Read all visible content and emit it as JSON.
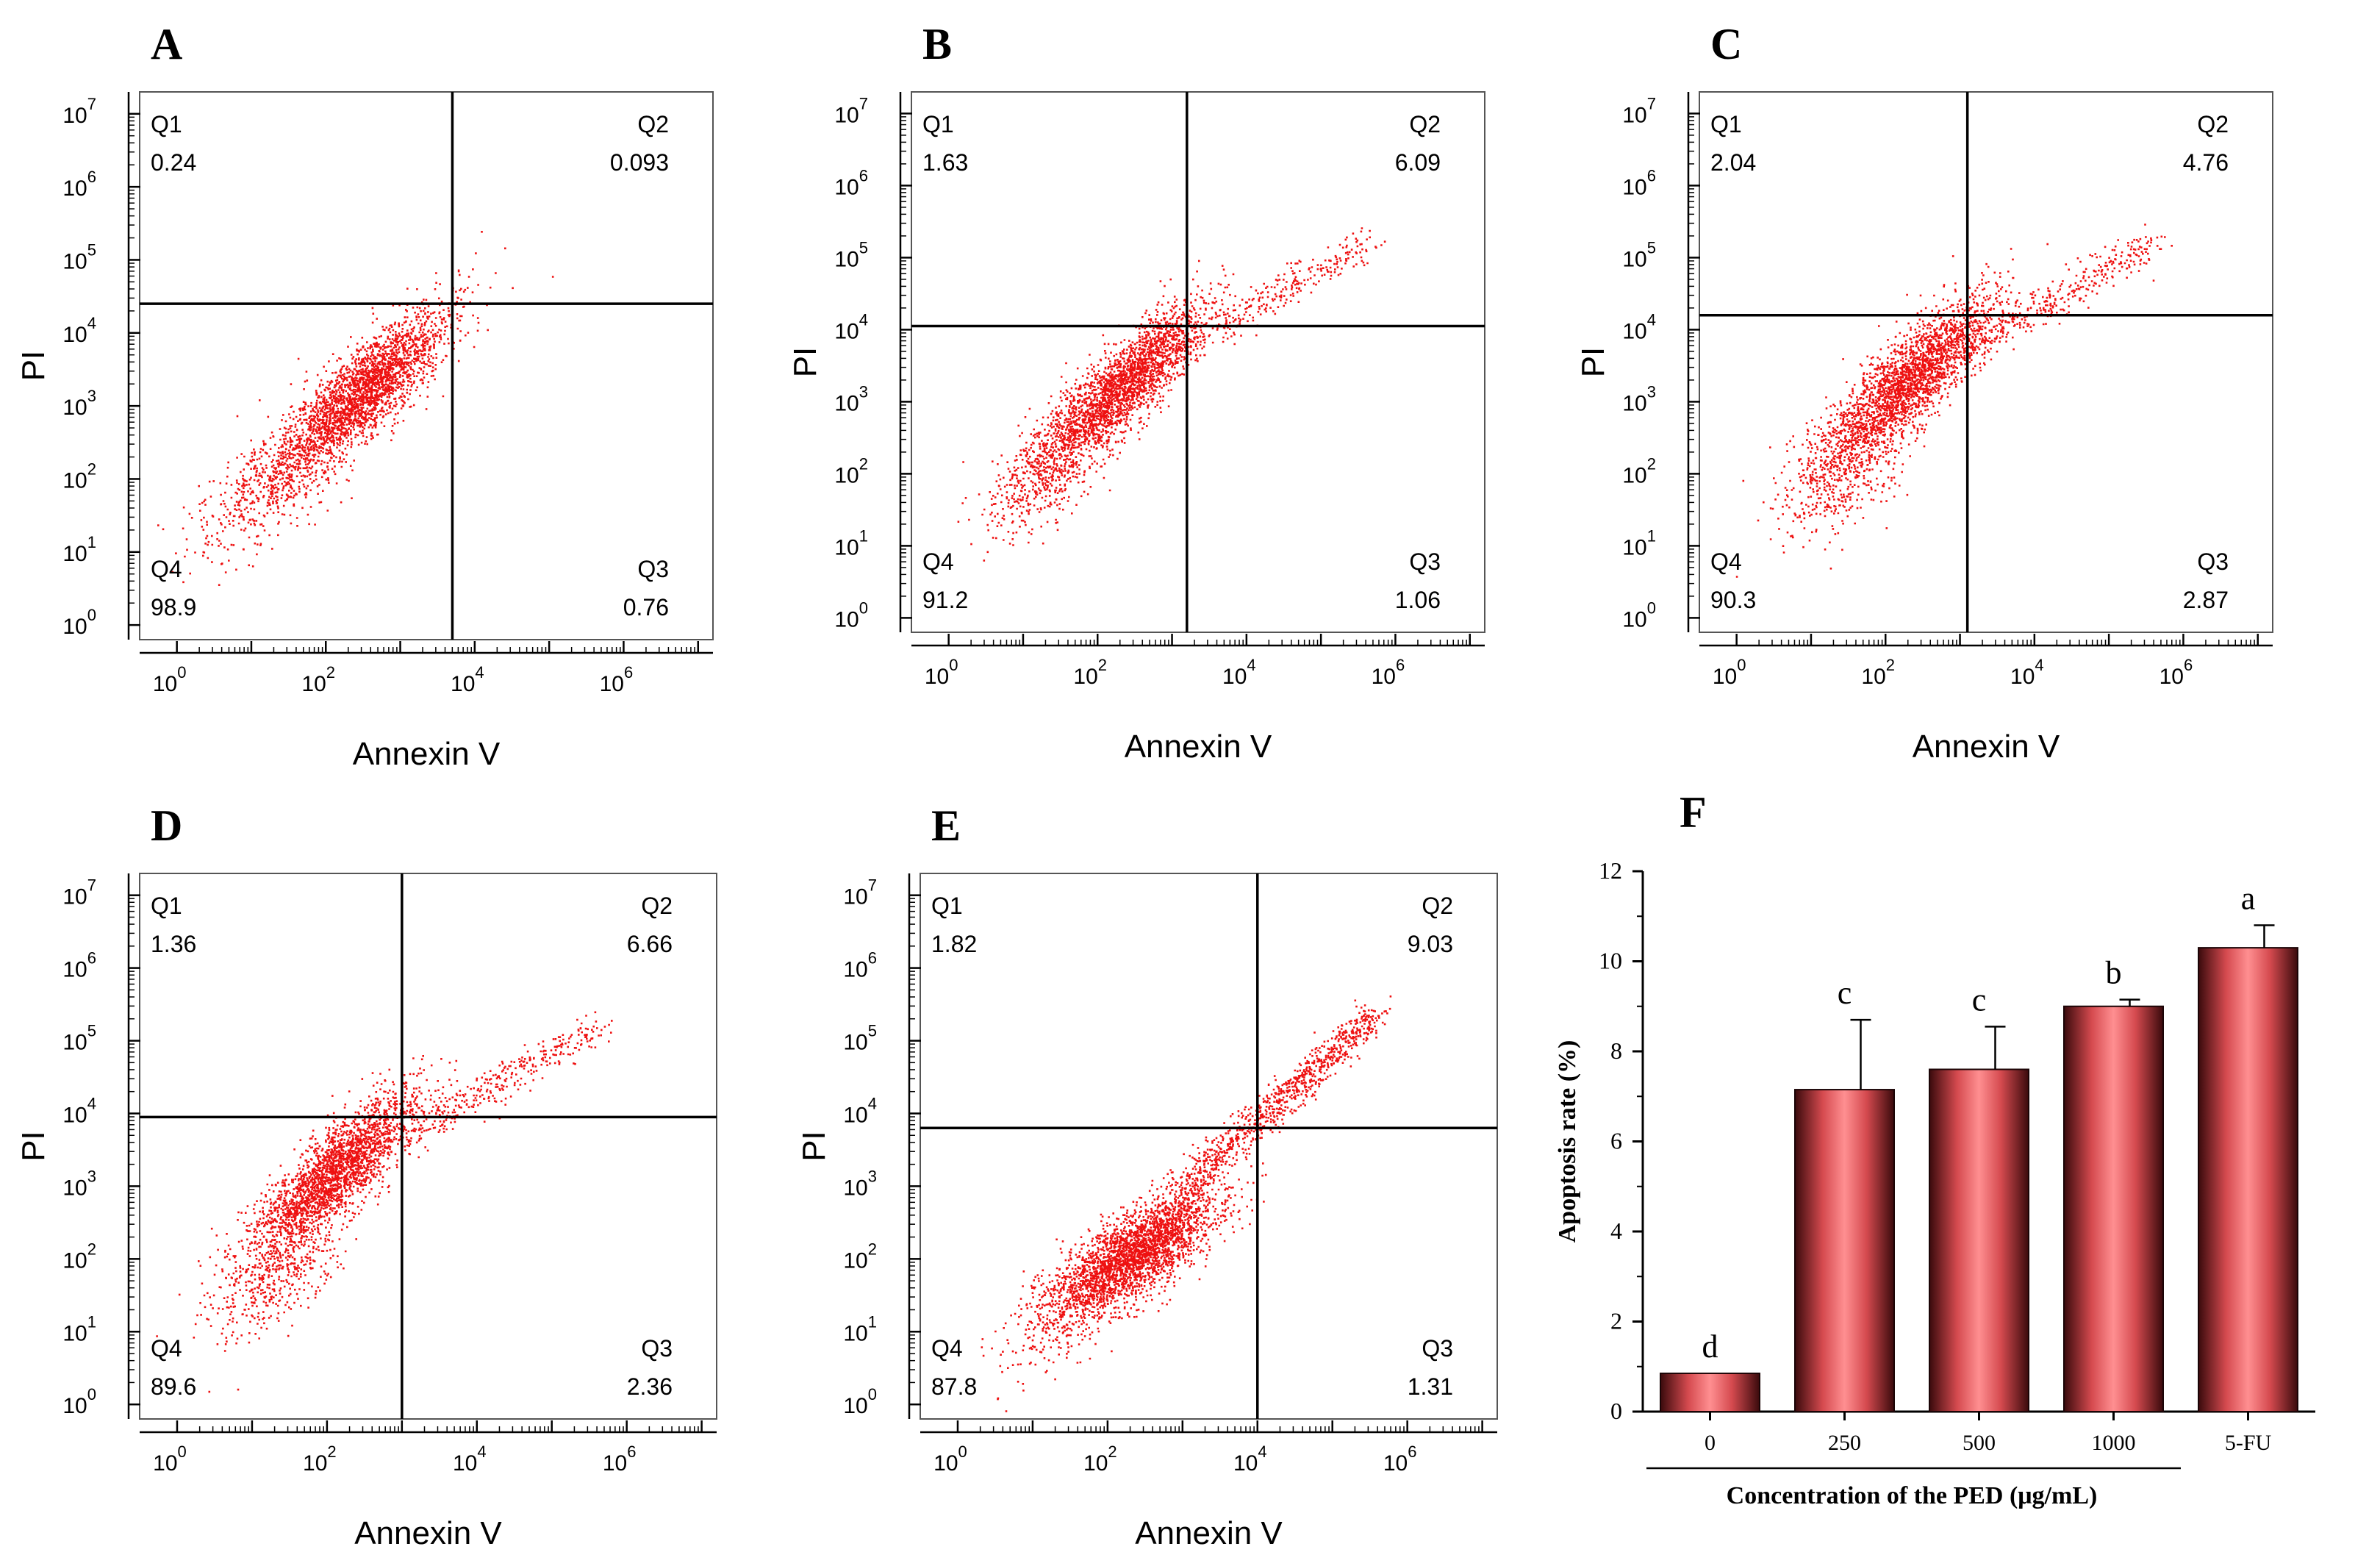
{
  "figure": {
    "panels": [
      {
        "letter": "A",
        "xlabel": "Annexin V",
        "ylabel": "PI",
        "quadrants": {
          "q1": {
            "label": "Q1",
            "value": "0.24"
          },
          "q2": {
            "label": "Q2",
            "value": "0.093"
          },
          "q3": {
            "label": "Q3",
            "value": "0.76"
          },
          "q4": {
            "label": "Q4",
            "value": "98.9"
          }
        },
        "gate": {
          "x": 3.7,
          "y": 4.4
        },
        "seed": 11
      },
      {
        "letter": "B",
        "xlabel": "Annexin V",
        "ylabel": "PI",
        "quadrants": {
          "q1": {
            "label": "Q1",
            "value": "1.63"
          },
          "q2": {
            "label": "Q2",
            "value": "6.09"
          },
          "q3": {
            "label": "Q3",
            "value": "1.06"
          },
          "q4": {
            "label": "Q4",
            "value": "91.2"
          }
        },
        "gate": {
          "x": 3.2,
          "y": 4.05
        },
        "seed": 23
      },
      {
        "letter": "C",
        "xlabel": "Annexin V",
        "ylabel": "PI",
        "quadrants": {
          "q1": {
            "label": "Q1",
            "value": "2.04"
          },
          "q2": {
            "label": "Q2",
            "value": "4.76"
          },
          "q3": {
            "label": "Q3",
            "value": "2.87"
          },
          "q4": {
            "label": "Q4",
            "value": "90.3"
          }
        },
        "gate": {
          "x": 3.1,
          "y": 4.2
        },
        "seed": 37
      },
      {
        "letter": "D",
        "xlabel": "Annexin V",
        "ylabel": "PI",
        "quadrants": {
          "q1": {
            "label": "Q1",
            "value": "1.36"
          },
          "q2": {
            "label": "Q2",
            "value": "6.66"
          },
          "q3": {
            "label": "Q3",
            "value": "2.36"
          },
          "q4": {
            "label": "Q4",
            "value": "89.6"
          }
        },
        "gate": {
          "x": 3.0,
          "y": 3.95
        },
        "seed": 41
      },
      {
        "letter": "E",
        "xlabel": "Annexin V",
        "ylabel": "PI",
        "quadrants": {
          "q1": {
            "label": "Q1",
            "value": "1.82"
          },
          "q2": {
            "label": "Q2",
            "value": "9.03"
          },
          "q3": {
            "label": "Q3",
            "value": "1.31"
          },
          "q4": {
            "label": "Q4",
            "value": "87.8"
          }
        },
        "gate": {
          "x": 4.0,
          "y": 3.8
        },
        "seed": 53
      }
    ],
    "scatter_axis": {
      "x_ticks": [
        {
          "label": "10",
          "exp": "0",
          "v": 0
        },
        {
          "label": "10",
          "exp": "2",
          "v": 2
        },
        {
          "label": "10",
          "exp": "4",
          "v": 4
        },
        {
          "label": "10",
          "exp": "6",
          "v": 6
        }
      ],
      "y_ticks": [
        {
          "label": "10",
          "exp": "0",
          "v": 0
        },
        {
          "label": "10",
          "exp": "1",
          "v": 1
        },
        {
          "label": "10",
          "exp": "2",
          "v": 2
        },
        {
          "label": "10",
          "exp": "3",
          "v": 3
        },
        {
          "label": "10",
          "exp": "4",
          "v": 4
        },
        {
          "label": "10",
          "exp": "5",
          "v": 5
        },
        {
          "label": "10",
          "exp": "6",
          "v": 6
        },
        {
          "label": "10",
          "exp": "7",
          "v": 7
        }
      ],
      "xlim_log10": [
        -0.5,
        7.2
      ],
      "ylim_log10": [
        -0.2,
        7.3
      ]
    },
    "point_color": "#ee1111",
    "bar_panel_letter": "F"
  },
  "chart_data": {
    "type": "bar",
    "title": "",
    "categories": [
      "0",
      "250",
      "500",
      "1000",
      "5-FU"
    ],
    "values": [
      0.85,
      7.15,
      7.6,
      9.0,
      10.3
    ],
    "errors": [
      0.0,
      1.55,
      0.95,
      0.15,
      0.5
    ],
    "significance": [
      "d",
      "c",
      "c",
      "b",
      "a"
    ],
    "xlabel": "Concentration of the PED (μg/mL)",
    "ylabel": "Apoptosis rate (%)",
    "ylim": [
      0,
      12
    ],
    "yticks": [
      "0",
      "2",
      "4",
      "6",
      "8",
      "10",
      "12"
    ],
    "bar_color": "#e8585a"
  }
}
